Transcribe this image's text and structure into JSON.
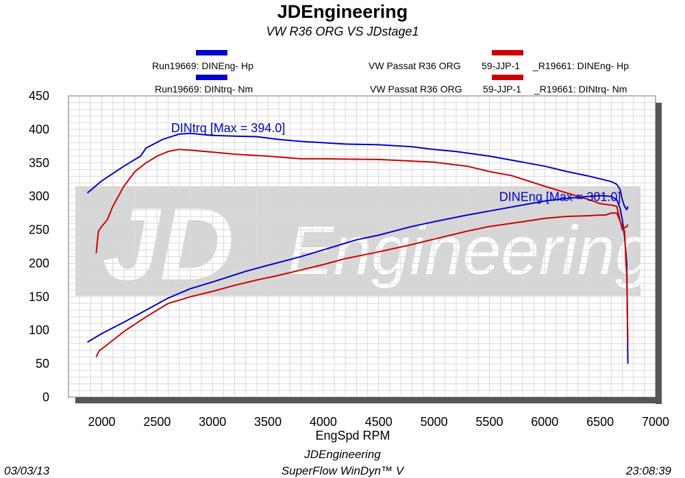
{
  "header": {
    "title": "JDEngineering",
    "subtitle": "VW R36 ORG VS JDstage1"
  },
  "legend": {
    "left": [
      {
        "label": "Run19669: DINEng- Hp",
        "color": "#0000cc"
      },
      {
        "label": "Run19669: DINtrq- Nm",
        "color": "#0000cc"
      }
    ],
    "right": [
      {
        "label_a": "VW Passat R36  ORG",
        "label_b": "59-JJP-1",
        "label_c": "_R19661: DINEng- Hp",
        "color": "#cc0000"
      },
      {
        "label_a": "VW Passat R36  ORG",
        "label_b": "59-JJP-1",
        "label_c": "_R19661: DINtrq- Nm",
        "color": "#cc0000"
      }
    ]
  },
  "watermark": {
    "logo": "JD",
    "text": "Engineering"
  },
  "footer": {
    "date": "03/03/13",
    "company": "JDEngineering",
    "software": "SuperFlow WinDyn™ V",
    "time": "23:08:39"
  },
  "chart_data": {
    "type": "line",
    "xlabel": "EngSpd  RPM",
    "ylabel": "",
    "xlim": [
      1700,
      7000
    ],
    "ylim": [
      0,
      450
    ],
    "x_ticks": [
      2000,
      2500,
      3000,
      3500,
      4000,
      4500,
      5000,
      5500,
      6000,
      6500,
      7000
    ],
    "y_ticks": [
      0,
      50,
      100,
      150,
      200,
      250,
      300,
      350,
      400,
      450
    ],
    "grid": true,
    "annotations": [
      {
        "text": "DINtrq [Max = 394.0]",
        "x": 2750,
        "y": 394,
        "color": "#0000cc"
      },
      {
        "text": "DINEng [Max = 301.0]",
        "x": 6300,
        "y": 301,
        "color": "#0000cc"
      }
    ],
    "series": [
      {
        "name": "Run19669: DINtrq- Nm",
        "color": "#0000cc",
        "x": [
          1870,
          2000,
          2200,
          2350,
          2400,
          2550,
          2700,
          2800,
          3000,
          3200,
          3400,
          3600,
          3800,
          4000,
          4200,
          4500,
          4800,
          5000,
          5200,
          5500,
          5800,
          6000,
          6200,
          6400,
          6500,
          6600,
          6650,
          6680,
          6700,
          6720,
          6740,
          6750
        ],
        "y": [
          305,
          323,
          345,
          360,
          372,
          385,
          393,
          394,
          391,
          390,
          389,
          385,
          382,
          380,
          378,
          377,
          374,
          370,
          367,
          360,
          351,
          345,
          337,
          330,
          326,
          322,
          318,
          310,
          295,
          285,
          280,
          285
        ]
      },
      {
        "name": "VW Passat R36  ORG  59-JJP-1  _R19661: DINtrq- Nm",
        "color": "#cc0000",
        "x": [
          1950,
          1970,
          2000,
          2050,
          2100,
          2200,
          2300,
          2400,
          2500,
          2600,
          2700,
          2800,
          3000,
          3200,
          3500,
          3800,
          4000,
          4500,
          5000,
          5300,
          5500,
          5700,
          6000,
          6200,
          6400,
          6500,
          6550,
          6600,
          6650,
          6700,
          6720,
          6740,
          6750
        ],
        "y": [
          215,
          248,
          255,
          265,
          285,
          315,
          337,
          350,
          360,
          367,
          370,
          369,
          366,
          363,
          360,
          356,
          356,
          355,
          351,
          345,
          337,
          331,
          315,
          305,
          295,
          289,
          288,
          287,
          285,
          250,
          253,
          255,
          258
        ]
      },
      {
        "name": "Run19669: DINEng- Hp",
        "color": "#0000cc",
        "x": [
          1870,
          2000,
          2200,
          2400,
          2600,
          2800,
          3000,
          3300,
          3500,
          3800,
          4000,
          4300,
          4500,
          4800,
          5000,
          5300,
          5500,
          5800,
          6000,
          6200,
          6400,
          6500,
          6600,
          6650,
          6680,
          6700,
          6720,
          6740,
          6750
        ],
        "y": [
          82,
          95,
          112,
          130,
          148,
          162,
          172,
          188,
          197,
          210,
          220,
          235,
          242,
          255,
          262,
          272,
          278,
          287,
          293,
          297,
          300,
          301,
          300,
          295,
          282,
          265,
          240,
          200,
          50
        ]
      },
      {
        "name": "VW Passat R36  ORG  59-JJP-1  _R19661: DINEng- Hp",
        "color": "#cc0000",
        "x": [
          1950,
          1980,
          2000,
          2100,
          2200,
          2400,
          2600,
          2800,
          3000,
          3200,
          3400,
          3600,
          3800,
          4000,
          4200,
          4500,
          4800,
          5000,
          5300,
          5500,
          5800,
          6000,
          6200,
          6400,
          6500,
          6550,
          6600,
          6650,
          6700,
          6720,
          6740,
          6750
        ],
        "y": [
          60,
          70,
          72,
          85,
          98,
          120,
          140,
          150,
          158,
          167,
          175,
          182,
          190,
          198,
          207,
          217,
          228,
          236,
          248,
          255,
          262,
          267,
          270,
          271,
          272,
          272,
          275,
          275,
          255,
          248,
          180,
          80
        ]
      }
    ]
  }
}
